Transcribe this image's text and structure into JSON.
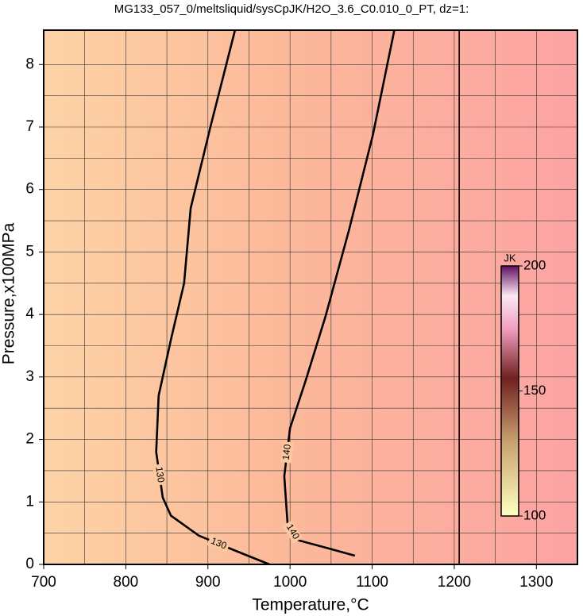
{
  "chart_data": {
    "type": "contour",
    "title": "MG133_057_0/meltsliquid/sysCpJK/H2O_3.6_C0.010_0_PT, dz=1:",
    "x_label": "Temperature,°C",
    "y_label": "Pressure,x100MPa",
    "xlim": [
      700,
      1350
    ],
    "ylim": [
      0,
      8.55
    ],
    "xticks": [
      700,
      800,
      900,
      1000,
      1100,
      1200,
      1300
    ],
    "yticks": [
      0,
      1,
      2,
      3,
      4,
      5,
      6,
      7,
      8
    ],
    "xgrid": [
      750,
      850,
      950,
      1050,
      1150,
      1250
    ],
    "ygrid": [
      0.5,
      1.5,
      2.5,
      3.5,
      4.5,
      5.5,
      6.5,
      7.5
    ],
    "contours": [
      {
        "level": 130,
        "x": [
          975,
          937,
          889,
          855,
          845,
          837,
          840,
          855,
          871,
          879,
          903,
          933
        ],
        "y": [
          0,
          0.2,
          0.46,
          0.78,
          1.07,
          1.8,
          2.7,
          3.6,
          4.5,
          5.7,
          7.0,
          8.55
        ],
        "label_at": [
          1,
          4
        ]
      },
      {
        "level": 140,
        "x": [
          1079,
          1043,
          1009,
          997,
          993,
          1000,
          1019,
          1043,
          1072,
          1101,
          1127
        ],
        "y": [
          0.14,
          0.27,
          0.39,
          0.65,
          1.41,
          2.18,
          2.94,
          3.96,
          5.36,
          6.88,
          8.55
        ],
        "label_at": [
          2,
          4
        ]
      },
      {
        "x": [
          1206,
          1206
        ],
        "y": [
          0,
          8.55
        ]
      }
    ],
    "colorbar": {
      "title": "JK",
      "lim": [
        100,
        200
      ],
      "ticks": [
        100,
        150,
        200
      ]
    }
  }
}
